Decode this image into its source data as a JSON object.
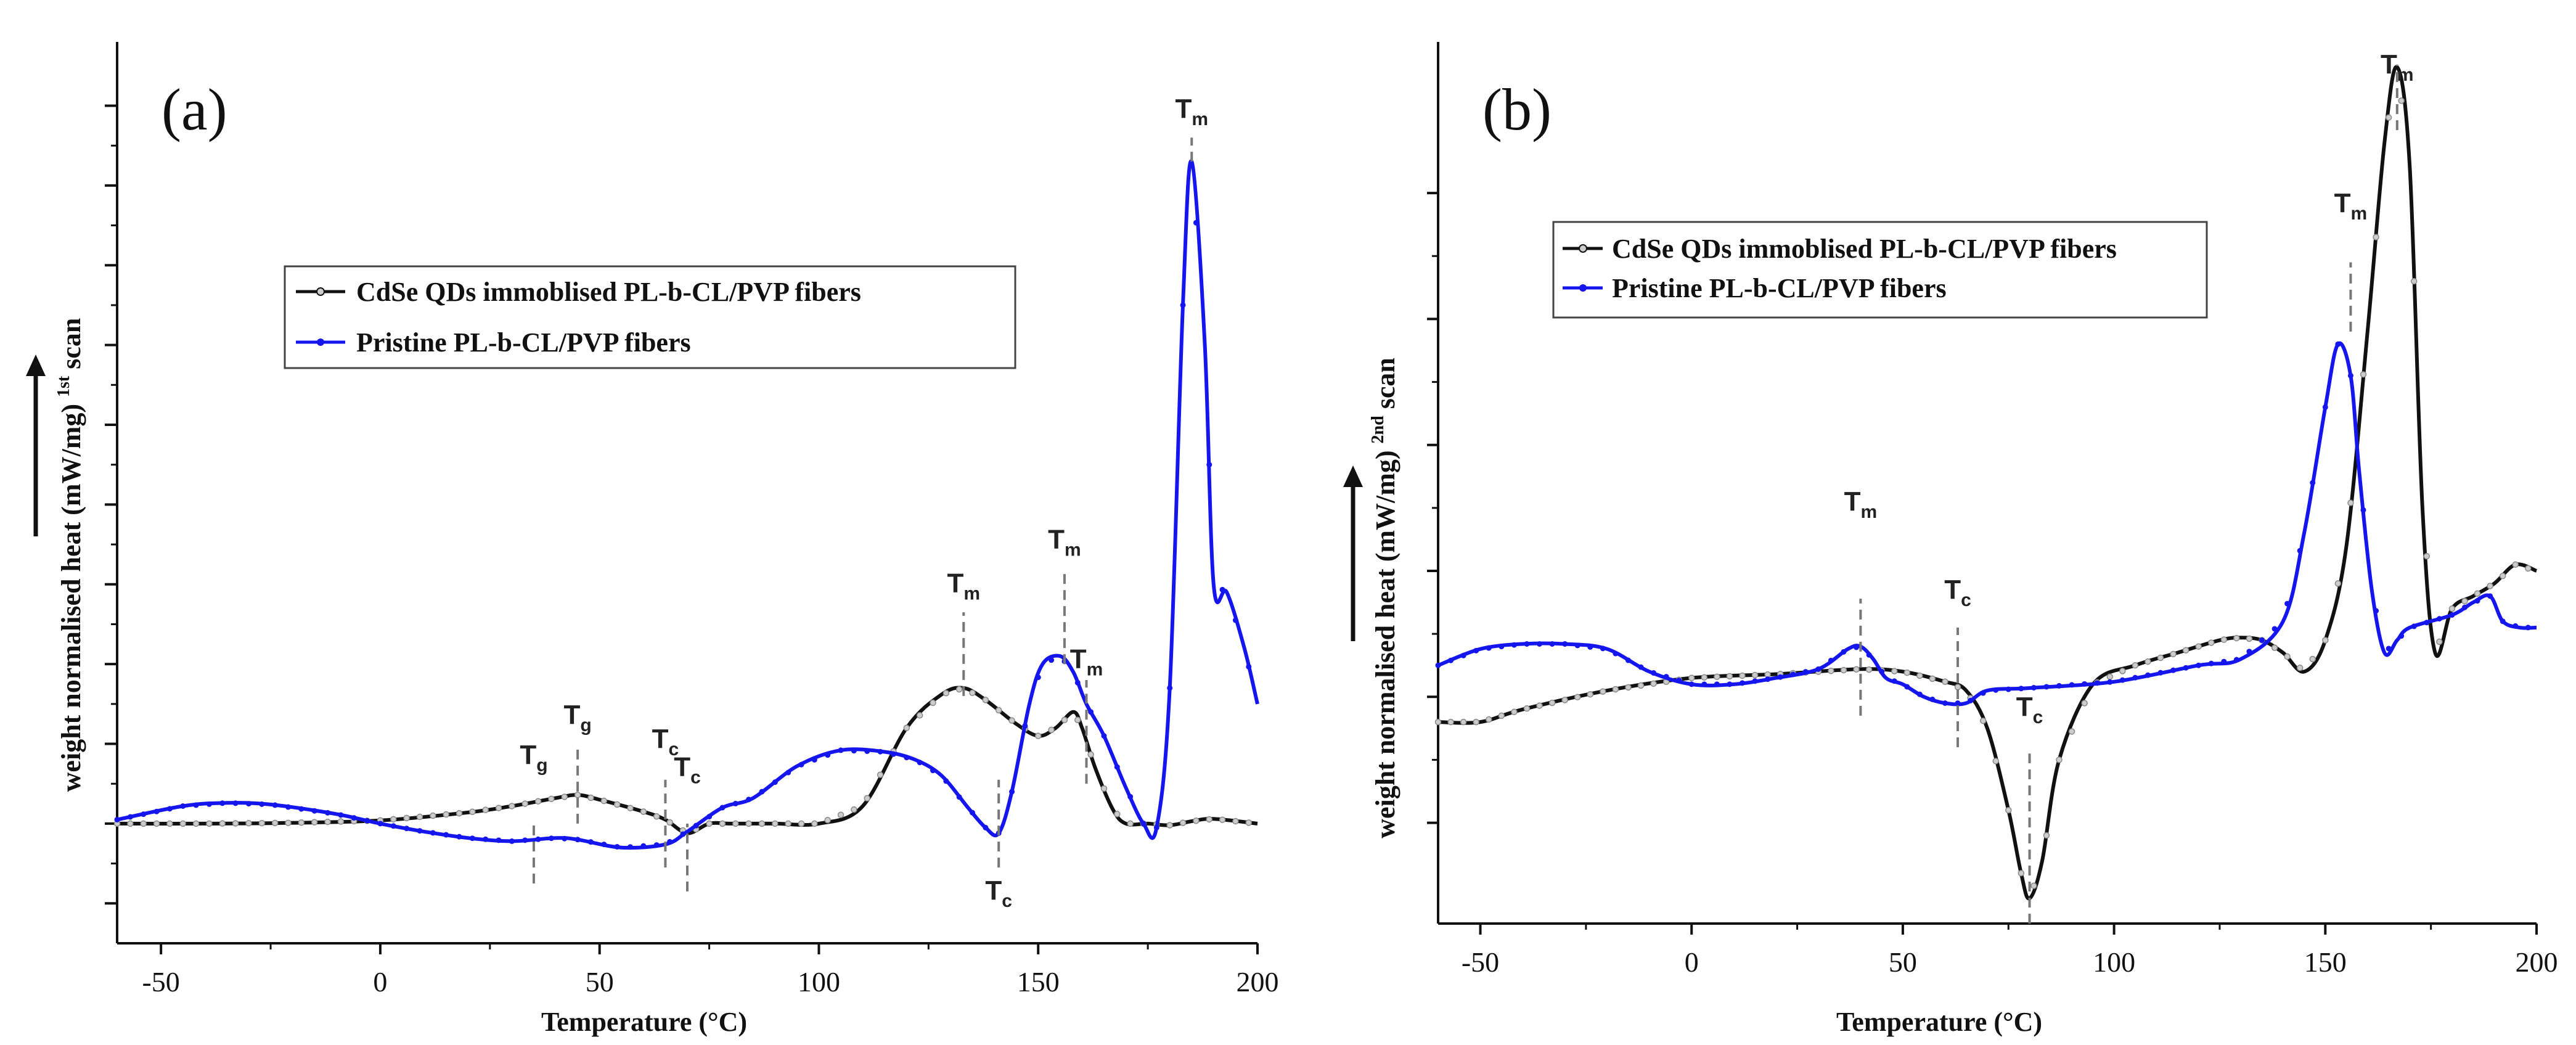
{
  "chart_data": [
    {
      "type": "line",
      "panel_label": "(a)",
      "xlabel": "Temperature (°C)",
      "ylabel": "weight normalised heat (mW/mg) ",
      "ylabel_sup": "1st",
      "ylabel_end": " scan",
      "xlim": [
        -60,
        200
      ],
      "ylim": [
        -1.5,
        9.8
      ],
      "x_ticks": [
        -50,
        0,
        50,
        100,
        150,
        200
      ],
      "x_tick_labels": [
        "-50",
        "0",
        "50",
        "100",
        "150",
        "200"
      ],
      "y_ticks": [
        -1,
        0,
        1,
        2,
        3,
        4,
        5,
        6,
        7,
        8,
        9
      ],
      "legend": {
        "placement": "upper-middle",
        "entries": [
          "CdSe QDs immoblised PL-b-CL/PVP fibers",
          "Pristine PL-b-CL/PVP fibers"
        ]
      },
      "series": [
        {
          "name": "CdSe QDs immoblised PL-b-CL/PVP fibers",
          "color": "#111111",
          "marker_color": "#cccccc",
          "x": [
            -60,
            -40,
            -20,
            0,
            20,
            30,
            40,
            45,
            50,
            60,
            65,
            70,
            75,
            80,
            90,
            100,
            110,
            120,
            128,
            133,
            138,
            145,
            150,
            154,
            158,
            160,
            163,
            167,
            170,
            175,
            180,
            185,
            190,
            200
          ],
          "y": [
            0.0,
            0.0,
            0.01,
            0.04,
            0.14,
            0.22,
            0.32,
            0.36,
            0.3,
            0.15,
            0.05,
            -0.12,
            0.0,
            0.0,
            0.0,
            0.0,
            0.22,
            1.2,
            1.62,
            1.7,
            1.55,
            1.25,
            1.1,
            1.2,
            1.4,
            1.2,
            0.7,
            0.18,
            0.0,
            0.0,
            -0.02,
            0.03,
            0.06,
            0.0
          ]
        },
        {
          "name": "Pristine PL-b-CL/PVP fibers",
          "color": "#1515ee",
          "marker_color": "#1515ee",
          "x": [
            -60,
            -45,
            -35,
            -25,
            -10,
            0,
            10,
            20,
            30,
            40,
            45,
            55,
            65,
            70,
            78,
            85,
            95,
            105,
            115,
            122,
            128,
            134,
            138,
            141,
            144,
            148,
            151,
            155,
            158,
            161,
            165,
            170,
            174,
            177,
            180,
            183,
            185,
            188,
            190,
            193,
            197,
            200
          ],
          "y": [
            0.05,
            0.22,
            0.26,
            0.24,
            0.12,
            0.0,
            -0.1,
            -0.18,
            -0.22,
            -0.18,
            -0.2,
            -0.3,
            -0.26,
            -0.1,
            0.2,
            0.32,
            0.72,
            0.92,
            0.9,
            0.8,
            0.6,
            0.2,
            -0.05,
            -0.12,
            0.4,
            1.5,
            2.0,
            2.1,
            1.9,
            1.5,
            1.1,
            0.45,
            0.0,
            -0.05,
            1.7,
            6.5,
            8.3,
            6.0,
            3.0,
            2.9,
            2.2,
            1.5
          ]
        }
      ],
      "annotations": [
        {
          "base": "T",
          "sub": "g",
          "x": 35,
          "label_y": 0.75,
          "line": [
            -0.75,
            0.05
          ]
        },
        {
          "base": "T",
          "sub": "g",
          "x": 45,
          "label_y": 1.25,
          "line": [
            0.0,
            0.95
          ]
        },
        {
          "base": "T",
          "sub": "c",
          "x": 65,
          "label_y": 0.95,
          "line": [
            -0.55,
            0.55
          ]
        },
        {
          "base": "T",
          "sub": "c",
          "x": 70,
          "label_y": 0.6,
          "line": [
            -0.85,
            0.0
          ]
        },
        {
          "base": "T",
          "sub": "m",
          "x": 133,
          "label_y": 2.9,
          "line": [
            1.6,
            2.65
          ]
        },
        {
          "base": "T",
          "sub": "m",
          "x": 156,
          "label_y": 3.45,
          "line": [
            2.0,
            3.2
          ]
        },
        {
          "base": "T",
          "sub": "m",
          "x": 161,
          "label_y": 1.95,
          "line": [
            0.5,
            1.8
          ]
        },
        {
          "base": "T",
          "sub": "c",
          "x": 141,
          "label_y": -0.95,
          "line": [
            -0.55,
            0.55
          ]
        },
        {
          "base": "T",
          "sub": "m",
          "x": 185,
          "label_y": 8.85,
          "line": [
            8.3,
            8.6
          ]
        }
      ]
    },
    {
      "type": "line",
      "panel_label": "(b)",
      "xlabel": "Temperature (°C)",
      "ylabel": "weight normalised heat (mW/mg) ",
      "ylabel_sup": "2nd",
      "ylabel_end": " scan",
      "xlim": [
        -60,
        200
      ],
      "ylim": [
        -1.8,
        5.2
      ],
      "x_ticks": [
        -50,
        0,
        50,
        100,
        150,
        200
      ],
      "x_tick_labels": [
        "-50",
        "0",
        "50",
        "100",
        "150",
        "200"
      ],
      "y_ticks": [
        -1,
        0,
        1,
        2,
        3,
        4
      ],
      "legend": {
        "placement": "upper-middle",
        "entries": [
          "CdSe QDs immoblised PL-b-CL/PVP fibers",
          "Pristine PL-b-CL/PVP fibers"
        ]
      },
      "series": [
        {
          "name": "CdSe QDs immoblised PL-b-CL/PVP fibers",
          "color": "#111111",
          "marker_color": "#cccccc",
          "x": [
            -60,
            -50,
            -40,
            -20,
            0,
            20,
            40,
            50,
            60,
            65,
            70,
            75,
            78,
            80,
            83,
            87,
            95,
            105,
            115,
            125,
            130,
            135,
            140,
            145,
            150,
            155,
            160,
            164,
            167,
            170,
            173,
            176,
            180,
            185,
            190,
            195,
            200
          ],
          "y": [
            -0.2,
            -0.2,
            -0.1,
            0.05,
            0.15,
            0.18,
            0.22,
            0.2,
            0.12,
            0.05,
            -0.25,
            -0.9,
            -1.4,
            -1.6,
            -1.3,
            -0.5,
            0.1,
            0.25,
            0.35,
            0.45,
            0.47,
            0.45,
            0.35,
            0.2,
            0.45,
            1.2,
            2.9,
            4.4,
            5.0,
            4.2,
            1.5,
            0.35,
            0.7,
            0.8,
            0.9,
            1.05,
            1.0
          ]
        },
        {
          "name": "Pristine PL-b-CL/PVP fibers",
          "color": "#1515ee",
          "marker_color": "#1515ee",
          "x": [
            -60,
            -50,
            -40,
            -30,
            -20,
            -10,
            0,
            10,
            20,
            30,
            37,
            40,
            43,
            46,
            50,
            55,
            60,
            65,
            70,
            80,
            100,
            120,
            130,
            140,
            145,
            150,
            153,
            156,
            158,
            161,
            164,
            167,
            170,
            180,
            185,
            189,
            192,
            196,
            200
          ],
          "y": [
            0.25,
            0.38,
            0.42,
            0.42,
            0.38,
            0.2,
            0.1,
            0.1,
            0.15,
            0.22,
            0.38,
            0.4,
            0.3,
            0.15,
            0.1,
            0.0,
            -0.05,
            -0.05,
            0.05,
            0.07,
            0.12,
            0.25,
            0.3,
            0.6,
            1.3,
            2.3,
            2.8,
            2.55,
            1.8,
            0.85,
            0.35,
            0.45,
            0.55,
            0.65,
            0.75,
            0.8,
            0.6,
            0.55,
            0.55
          ]
        }
      ],
      "annotations": [
        {
          "base": "T",
          "sub": "m",
          "x": 40,
          "label_y": 1.48,
          "line": [
            -0.15,
            0.78
          ]
        },
        {
          "base": "T",
          "sub": "c",
          "x": 63,
          "label_y": 0.78,
          "line": [
            -0.4,
            0.55
          ]
        },
        {
          "base": "T",
          "sub": "c",
          "x": 80,
          "label_y": -0.15,
          "line": [
            -1.8,
            -0.45
          ]
        },
        {
          "base": "T",
          "sub": "m",
          "x": 156,
          "label_y": 3.85,
          "line": [
            2.9,
            3.45
          ]
        },
        {
          "base": "T",
          "sub": "m",
          "x": 167,
          "label_y": 4.95,
          "line": [
            4.5,
            5.02
          ]
        }
      ]
    }
  ]
}
